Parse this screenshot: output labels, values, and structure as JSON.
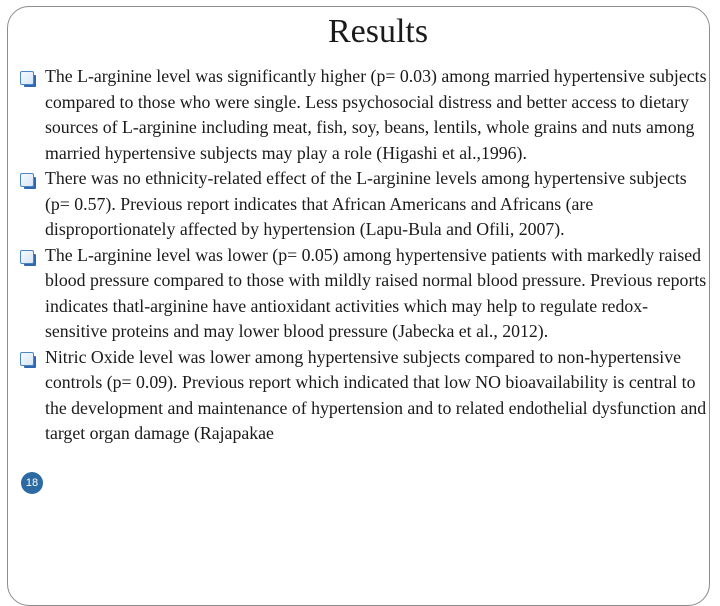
{
  "slide": {
    "title": "Results",
    "page_number": "18",
    "bullets": [
      "The L-arginine level was significantly higher (p= 0.03) among married hypertensive subjects compared to those who were single. Less psychosocial distress and better access to dietary sources of L-arginine including meat, fish, soy, beans, lentils, whole grains and nuts among married hypertensive subjects may play a role (Higashi et al.,1996).",
      "There was no ethnicity-related effect of the L-arginine levels among hypertensive subjects (p= 0.57). Previous report indicates that African Americans and Africans (are disproportionately affected by hypertension (Lapu-Bula and Ofili, 2007).",
      "The L-arginine level was lower (p= 0.05) among hypertensive patients with markedly raised blood pressure compared to those with mildly raised normal blood pressure. Previous reports indicates thatl-arginine have antioxidant activities which may help to regulate redox-sensitive proteins and may lower blood pressure (Jabecka et al., 2012).",
      "Nitric Oxide level was lower among hypertensive subjects compared to non-hypertensive controls (p= 0.09). Previous report which indicated that low NO bioavailability is central to the development and maintenance of hypertension and to related endothelial dysfunction and target organ damage (Rajapakae"
    ]
  },
  "colors": {
    "bullet_blue": "#2f68b1",
    "page_number_badge": "#2c6aa3"
  },
  "icons": {
    "bullet": "square-bullet-icon"
  }
}
